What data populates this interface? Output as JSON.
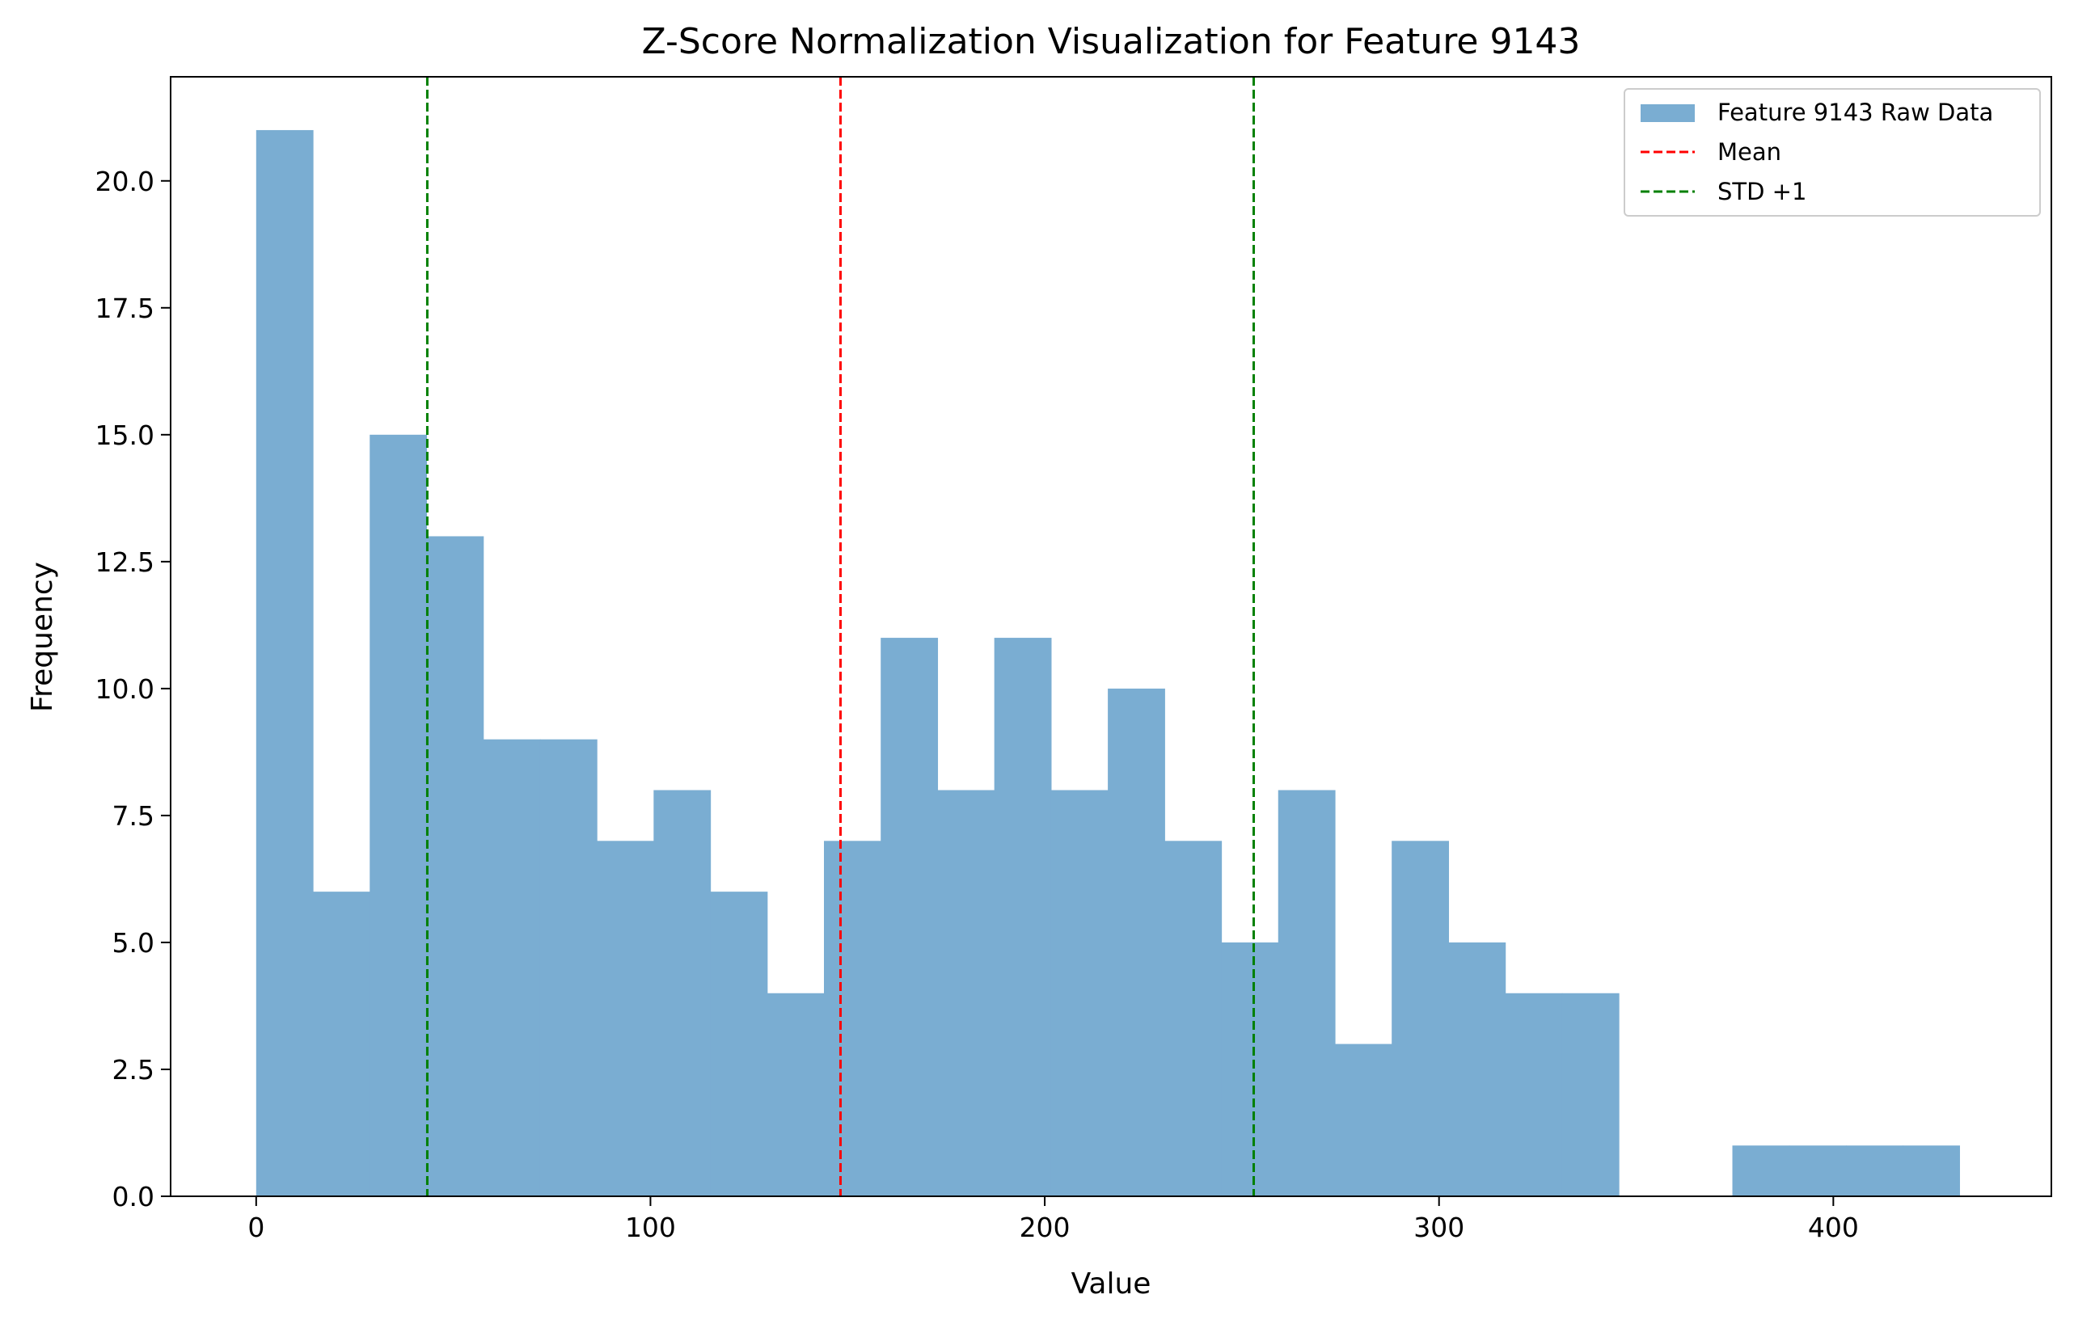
{
  "chart_data": {
    "type": "bar",
    "title": "Z-Score Normalization Visualization for Feature 9143",
    "xlabel": "Value",
    "ylabel": "Frequency",
    "xlim": [
      -21.7,
      455.3
    ],
    "ylim": [
      0,
      22.05
    ],
    "grid": false,
    "legend_position": "top-right",
    "bin_edges": [
      0,
      14.4,
      28.8,
      43.2,
      57.6,
      72.0,
      86.4,
      100.8,
      115.2,
      129.6,
      144.0,
      158.4,
      172.8,
      187.2,
      201.6,
      216.0,
      230.4,
      244.8,
      259.2,
      273.6,
      288.0,
      302.4,
      316.8,
      331.2,
      345.6,
      360.0,
      374.4,
      388.8,
      403.2,
      417.6,
      432.0
    ],
    "series": [
      {
        "name": "Feature 9143 Raw Data",
        "color": "#7aadd2",
        "values": [
          21,
          6,
          15,
          13,
          9,
          9,
          7,
          8,
          6,
          4,
          7,
          11,
          8,
          11,
          8,
          10,
          7,
          5,
          8,
          3,
          7,
          5,
          4,
          4,
          0,
          0,
          1,
          1,
          1,
          1
        ]
      }
    ],
    "reference_lines": [
      {
        "name": "Mean",
        "x": 148.2,
        "color": "#ff0000",
        "style": "dashed"
      },
      {
        "name": "STD +1",
        "x": 43.4,
        "color": "#008000",
        "style": "dashed"
      },
      {
        "name": "STD +1",
        "x": 253.0,
        "color": "#008000",
        "style": "dashed"
      }
    ],
    "legend": [
      {
        "label": "Feature 9143 Raw Data",
        "kind": "patch",
        "color": "#7aadd2"
      },
      {
        "label": "Mean",
        "kind": "dashed-line",
        "color": "#ff0000"
      },
      {
        "label": "STD +1",
        "kind": "dashed-line",
        "color": "#008000"
      }
    ],
    "x_ticks": [
      {
        "value": 0,
        "label": "0"
      },
      {
        "value": 100,
        "label": "100"
      },
      {
        "value": 200,
        "label": "200"
      },
      {
        "value": 300,
        "label": "300"
      },
      {
        "value": 400,
        "label": "400"
      }
    ],
    "y_ticks": [
      {
        "value": 0,
        "label": "0.0"
      },
      {
        "value": 2.5,
        "label": "2.5"
      },
      {
        "value": 5,
        "label": "5.0"
      },
      {
        "value": 7.5,
        "label": "7.5"
      },
      {
        "value": 10,
        "label": "10.0"
      },
      {
        "value": 12.5,
        "label": "12.5"
      },
      {
        "value": 15,
        "label": "15.0"
      },
      {
        "value": 17.5,
        "label": "17.5"
      },
      {
        "value": 20,
        "label": "20.0"
      }
    ]
  }
}
